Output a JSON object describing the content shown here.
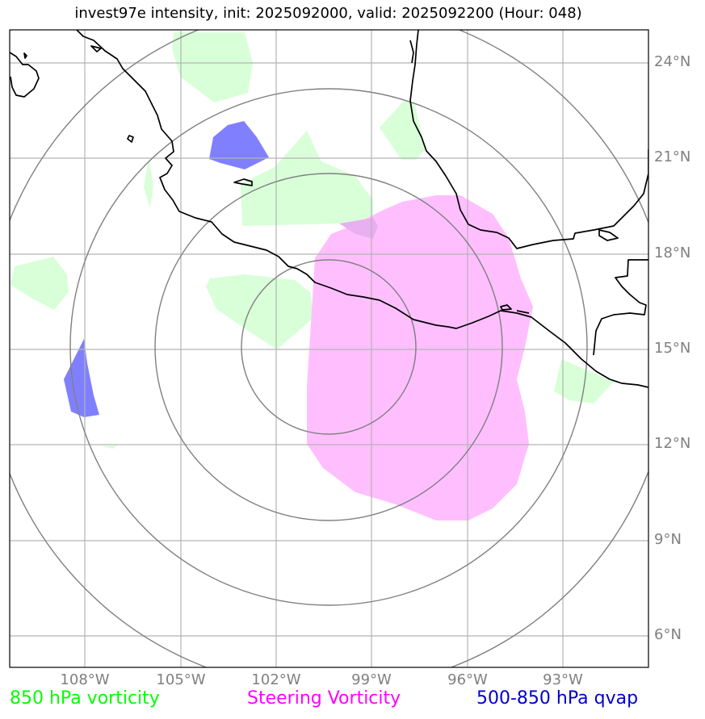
{
  "title": "invest97e intensity, init: 2025092000, valid: 2025092200 (Hour: 048)",
  "latitude_labels": [
    "24°N",
    "21°N",
    "18°N",
    "15°N",
    "12°N",
    "9°N",
    "6°N"
  ],
  "longitude_labels": [
    "108°W",
    "105°W",
    "102°W",
    "99°W",
    "96°W",
    "93°W"
  ],
  "legend": [
    {
      "label": "850 hPa vorticity",
      "color": "#00ff00"
    },
    {
      "label": "Steering Vorticity",
      "color": "#ff00ff"
    },
    {
      "label": "500-850 hPa qvap",
      "color": "#0000cc"
    }
  ],
  "field_colors": {
    "vorticity_850": "#d9ffd9",
    "steering_vorticity": "#ffbfff",
    "qvap": "#8080ff",
    "gridline": "#b0b0b0",
    "range_ring": "#808080",
    "coastline": "#000000"
  }
}
